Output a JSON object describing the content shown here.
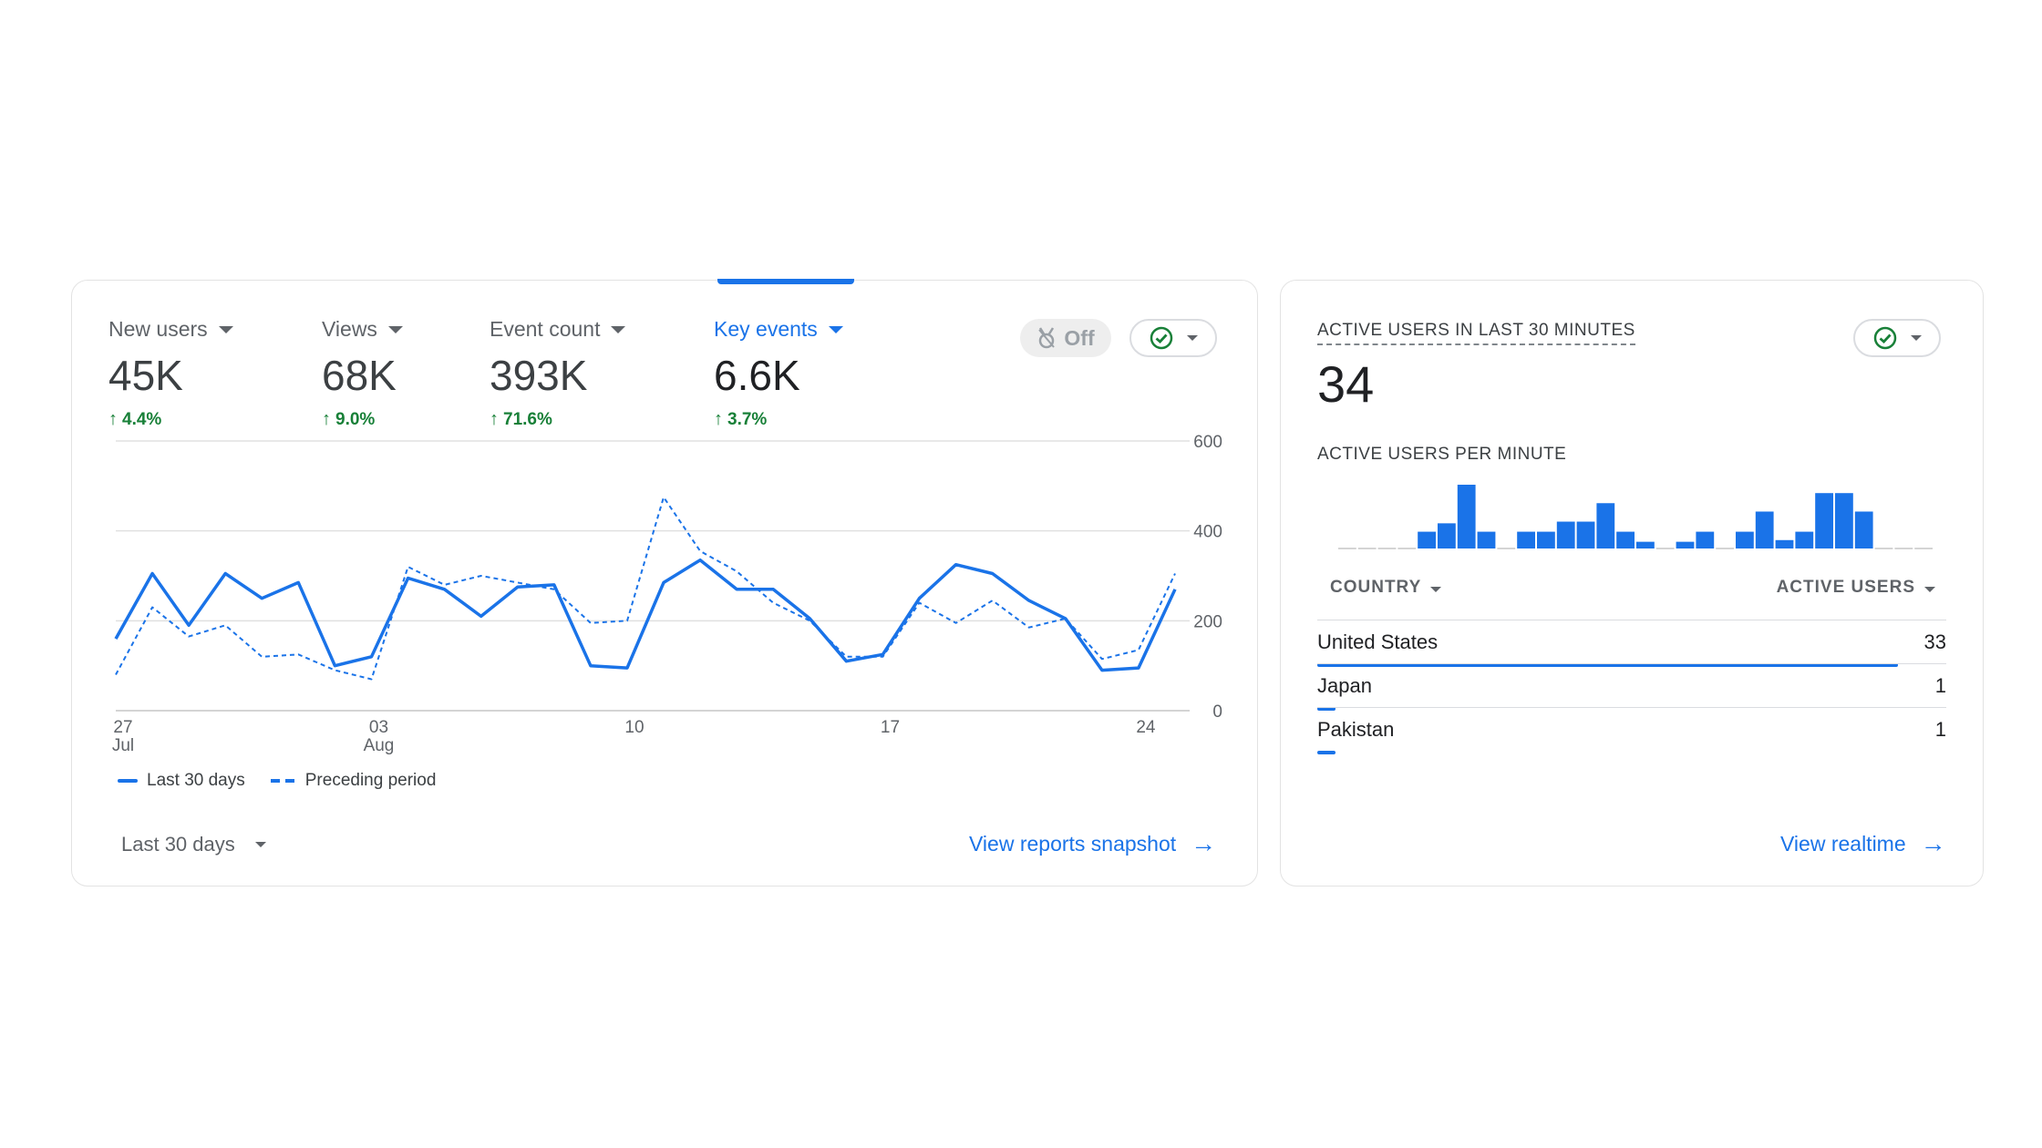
{
  "overview": {
    "metrics": [
      {
        "label": "New users",
        "value": "45K",
        "delta": "4.4%"
      },
      {
        "label": "Views",
        "value": "68K",
        "delta": "9.0%"
      },
      {
        "label": "Event count",
        "value": "393K",
        "delta": "71.6%"
      },
      {
        "label": "Key events",
        "value": "6.6K",
        "delta": "3.7%"
      }
    ],
    "insights_toggle_label": "Off",
    "range_label": "Last 30 days",
    "link_label": "View reports snapshot"
  },
  "colors": {
    "primary": "#1a73e8",
    "positive": "#188038",
    "check": "#188038"
  },
  "chart_data": {
    "type": "line",
    "x": [
      "Jul 27",
      "Jul 28",
      "Jul 29",
      "Jul 30",
      "Jul 31",
      "Aug 01",
      "Aug 02",
      "Aug 03",
      "Aug 04",
      "Aug 05",
      "Aug 06",
      "Aug 07",
      "Aug 08",
      "Aug 09",
      "Aug 10",
      "Aug 11",
      "Aug 12",
      "Aug 13",
      "Aug 14",
      "Aug 15",
      "Aug 16",
      "Aug 17",
      "Aug 18",
      "Aug 19",
      "Aug 20",
      "Aug 21",
      "Aug 22",
      "Aug 23",
      "Aug 24",
      "Aug 25"
    ],
    "x_ticks": [
      {
        "index": 0,
        "label": "27",
        "sublabel": "Jul"
      },
      {
        "index": 7,
        "label": "03",
        "sublabel": "Aug"
      },
      {
        "index": 14,
        "label": "10",
        "sublabel": ""
      },
      {
        "index": 21,
        "label": "17",
        "sublabel": ""
      },
      {
        "index": 28,
        "label": "24",
        "sublabel": ""
      }
    ],
    "y_ticks": [
      "600",
      "400",
      "200",
      "0"
    ],
    "ylim": [
      0,
      600
    ],
    "y_axis_side": "right",
    "grid": true,
    "legend_position": "bottom-left",
    "series": [
      {
        "name": "Last 30 days",
        "style": "solid",
        "values": [
          160,
          305,
          190,
          305,
          250,
          285,
          100,
          120,
          295,
          270,
          210,
          275,
          280,
          100,
          95,
          285,
          335,
          270,
          270,
          205,
          110,
          125,
          250,
          325,
          305,
          245,
          205,
          90,
          95,
          270
        ]
      },
      {
        "name": "Preceding period",
        "style": "dashed",
        "values": [
          80,
          230,
          165,
          190,
          120,
          125,
          90,
          70,
          320,
          280,
          300,
          285,
          270,
          195,
          200,
          475,
          355,
          310,
          240,
          200,
          120,
          120,
          240,
          195,
          245,
          185,
          205,
          115,
          135,
          305
        ]
      }
    ]
  },
  "realtime": {
    "title": "ACTIVE USERS IN LAST 30 MINUTES",
    "value": "34",
    "per_minute_label": "ACTIVE USERS PER MINUTE",
    "per_minute": [
      0,
      0,
      0,
      0,
      1,
      1.5,
      3.8,
      1,
      0,
      1,
      1,
      1.6,
      1.6,
      2.7,
      1,
      0.4,
      0,
      0.4,
      1,
      0,
      1,
      2.2,
      0.5,
      1,
      3.3,
      3.3,
      2.2,
      0,
      0,
      0
    ],
    "table": {
      "col_country": "COUNTRY",
      "col_users": "ACTIVE USERS",
      "rows": [
        {
          "country": "United States",
          "users": "33",
          "share": 0.98
        },
        {
          "country": "Japan",
          "users": "1",
          "share": 0.03
        },
        {
          "country": "Pakistan",
          "users": "1",
          "share": 0.03
        }
      ]
    },
    "link_label": "View realtime"
  }
}
